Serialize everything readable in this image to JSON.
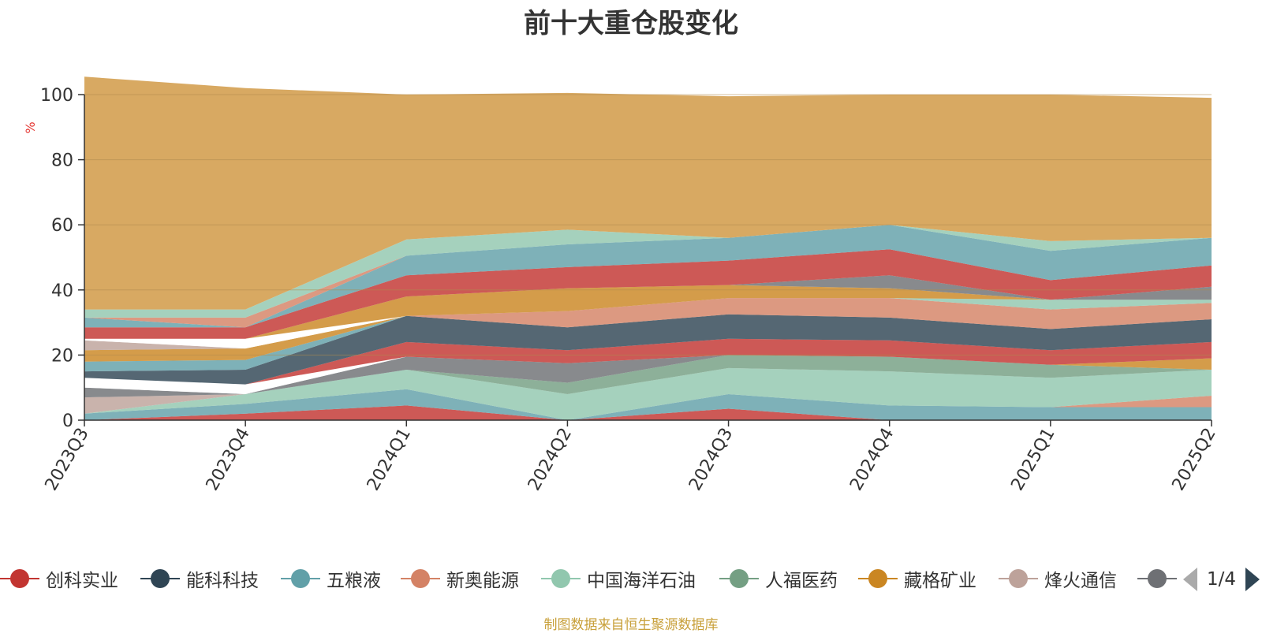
{
  "chart_data": {
    "type": "area",
    "title": "前十大重仓股变化",
    "ylabel": "%",
    "xlabel": "",
    "stacked": true,
    "ylim": [
      0,
      100
    ],
    "yticks": [
      0,
      20,
      40,
      60,
      80,
      100
    ],
    "categories": [
      "2023Q3",
      "2023Q4",
      "2024Q1",
      "2024Q2",
      "2024Q3",
      "2024Q4",
      "2025Q1",
      "2025Q2"
    ],
    "grid": true,
    "legend_position": "bottom",
    "series": [
      {
        "name": "",
        "color": "#c23531",
        "values": [
          0,
          2,
          4.5,
          0,
          3.5,
          0,
          0,
          0
        ]
      },
      {
        "name": "",
        "color": "#61a0a8",
        "values": [
          2,
          3,
          5,
          0,
          4.5,
          4.5,
          4,
          4
        ]
      },
      {
        "name": "",
        "color": "#d48265",
        "values": [
          0,
          0,
          0,
          0,
          0,
          0,
          0,
          3.5
        ]
      },
      {
        "name": "",
        "color": "#91c7ae",
        "values": [
          0,
          3,
          6,
          8,
          8,
          10.5,
          9,
          8
        ]
      },
      {
        "name": "",
        "color": "#749f83",
        "values": [
          0,
          0,
          0,
          3.5,
          4,
          4.5,
          4,
          0
        ]
      },
      {
        "name": "",
        "color": "#ca8622",
        "values": [
          0,
          0,
          0,
          0,
          0,
          0,
          0,
          3.5
        ]
      },
      {
        "name": "",
        "color": "#bda29a",
        "values": [
          5,
          0,
          0,
          0,
          0,
          0,
          0,
          0
        ]
      },
      {
        "name": "",
        "color": "#6e7074",
        "values": [
          3,
          0,
          4,
          6,
          0,
          0,
          0,
          0
        ]
      },
      {
        "name": "",
        "color": "#ffffff",
        "values": [
          3,
          3,
          0,
          0,
          0,
          0,
          0,
          0
        ]
      },
      {
        "name": "",
        "color": "#c23531",
        "values": [
          0,
          0,
          4.5,
          4,
          5,
          5,
          4.5,
          5
        ]
      },
      {
        "name": "",
        "color": "#2f4554",
        "values": [
          2,
          4.5,
          8,
          7,
          7.5,
          7,
          6.5,
          7
        ]
      },
      {
        "name": "",
        "color": "#61a0a8",
        "values": [
          3,
          3,
          0,
          0,
          0,
          0,
          0,
          0
        ]
      },
      {
        "name": "",
        "color": "#ca8622",
        "values": [
          3.5,
          3.5,
          0,
          0,
          0,
          0,
          0,
          0
        ]
      },
      {
        "name": "",
        "color": "#d48265",
        "values": [
          0,
          0,
          0,
          5,
          5,
          6,
          6,
          5
        ]
      },
      {
        "name": "",
        "color": "#91c7ae",
        "values": [
          0,
          0,
          0,
          0,
          0,
          0,
          3,
          1
        ]
      },
      {
        "name": "",
        "color": "#bda29a",
        "values": [
          3,
          0,
          0,
          0,
          0,
          0,
          0,
          0
        ]
      },
      {
        "name": "",
        "color": "#ffffff",
        "values": [
          0.5,
          3,
          0,
          0,
          0,
          0,
          0,
          0
        ]
      },
      {
        "name": "",
        "color": "#ca8622",
        "values": [
          0,
          0,
          6,
          7,
          4,
          3,
          0,
          0
        ]
      },
      {
        "name": "",
        "color": "#6e7074",
        "values": [
          0,
          0,
          0,
          0,
          0,
          4,
          0,
          4
        ]
      },
      {
        "name": "",
        "color": "#c23531",
        "values": [
          3.5,
          3.5,
          6.5,
          6.5,
          7.5,
          8,
          6,
          6.5
        ]
      },
      {
        "name": "",
        "color": "#61a0a8",
        "values": [
          3,
          0,
          6,
          7,
          7,
          7.5,
          9,
          8.5
        ]
      },
      {
        "name": "",
        "color": "#d48265",
        "values": [
          0,
          3,
          0,
          0,
          0,
          0,
          0,
          0
        ]
      },
      {
        "name": "",
        "color": "#91c7ae",
        "values": [
          2.5,
          2.5,
          5,
          4.5,
          0,
          0,
          3,
          0
        ]
      },
      {
        "name": "",
        "color": "#d8a962",
        "values": [
          71.5,
          68,
          44.5,
          42,
          43.5,
          40,
          45,
          43
        ]
      }
    ]
  },
  "legend": {
    "items": [
      {
        "label": "创科实业",
        "color": "#c23531"
      },
      {
        "label": "能科科技",
        "color": "#2f4554"
      },
      {
        "label": "五粮液",
        "color": "#61a0a8"
      },
      {
        "label": "新奥能源",
        "color": "#d48265"
      },
      {
        "label": "中国海洋石油",
        "color": "#91c7ae"
      },
      {
        "label": "人福医药",
        "color": "#749f83"
      },
      {
        "label": "藏格矿业",
        "color": "#ca8622"
      },
      {
        "label": "烽火通信",
        "color": "#bda29a"
      },
      {
        "label": "",
        "color": "#6e7074"
      }
    ],
    "page_text": "1/4"
  },
  "source_note": "制图数据来自恒生聚源数据库"
}
